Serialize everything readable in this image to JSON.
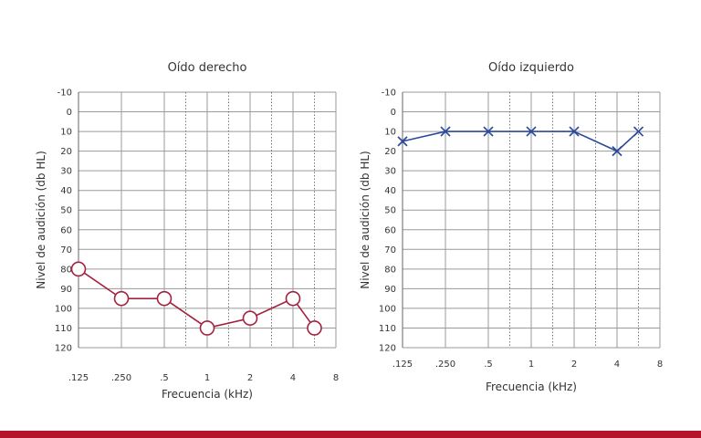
{
  "chart_data": [
    {
      "type": "line",
      "title": "Oído derecho",
      "xlabel": "Frecuencia (kHz)",
      "ylabel": "Nivel de audición (db HL)",
      "x_tick_labels": [
        ".125",
        ".250",
        ".5",
        "1",
        "2",
        "4",
        "8"
      ],
      "y_ticks": [
        -10,
        0,
        10,
        20,
        30,
        40,
        50,
        60,
        70,
        80,
        90,
        100,
        110,
        120
      ],
      "ylim": [
        -10,
        120
      ],
      "y_inverted": true,
      "grid": true,
      "series": [
        {
          "marker": "circle",
          "color": "#a3223f",
          "points": [
            {
              "x": ".125",
              "y": 80
            },
            {
              "x": ".250",
              "y": 95
            },
            {
              "x": ".5",
              "y": 95
            },
            {
              "x": "1",
              "y": 110
            },
            {
              "x": "2",
              "y": 105
            },
            {
              "x": "4",
              "y": 95
            },
            {
              "x": "6",
              "y": 110
            }
          ]
        }
      ]
    },
    {
      "type": "line",
      "title": "Oído izquierdo",
      "xlabel": "Frecuencia (kHz)",
      "ylabel": "Nivel de audición (db HL)",
      "x_tick_labels": [
        ".125",
        ".250",
        ".5",
        "1",
        "2",
        "4",
        "8"
      ],
      "y_ticks": [
        -10,
        0,
        10,
        20,
        30,
        40,
        50,
        60,
        70,
        80,
        90,
        100,
        110,
        120
      ],
      "ylim": [
        -10,
        120
      ],
      "y_inverted": true,
      "grid": true,
      "series": [
        {
          "marker": "x",
          "color": "#2b4a9a",
          "points": [
            {
              "x": ".125",
              "y": 15
            },
            {
              "x": ".250",
              "y": 10
            },
            {
              "x": ".5",
              "y": 10
            },
            {
              "x": "1",
              "y": 10
            },
            {
              "x": "2",
              "y": 10
            },
            {
              "x": "4",
              "y": 20
            },
            {
              "x": "6",
              "y": 10
            }
          ]
        }
      ]
    }
  ],
  "colors": {
    "bottom_bar": "#b5152b",
    "grid": "#9a9a9a"
  }
}
